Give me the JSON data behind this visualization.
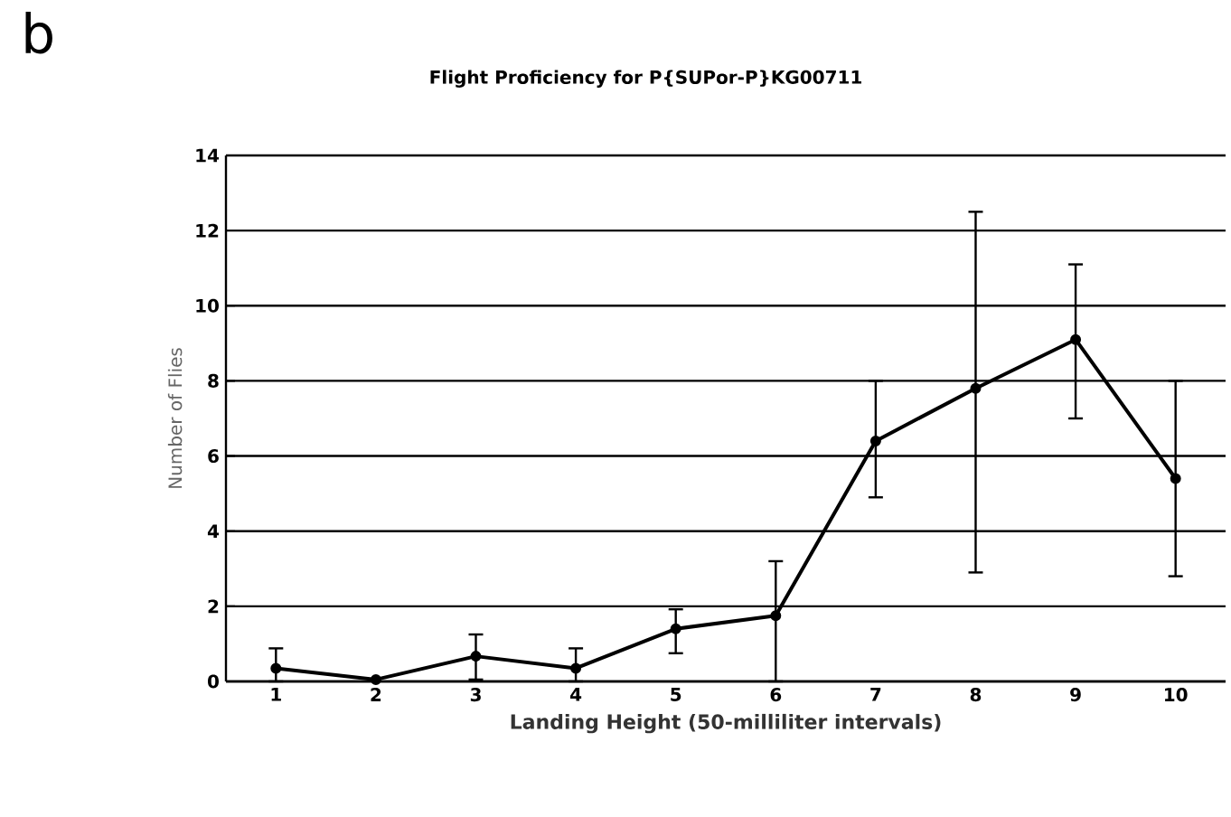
{
  "chart_data": {
    "type": "line",
    "title": "Flight Proficiency for P{SUPor-P}KG00711",
    "xlabel": "Landing Height (50-milliliter intervals)",
    "ylabel": "Number of Flies",
    "annotations": [
      "b"
    ],
    "categories": [
      "1",
      "2",
      "3",
      "4",
      "5",
      "6",
      "7",
      "8",
      "9",
      "10"
    ],
    "series": [
      {
        "color": "#000000",
        "values": [
          0.35,
          0.05,
          0.67,
          0.35,
          1.4,
          1.75,
          6.4,
          7.8,
          9.1,
          5.4
        ],
        "errors": [
          [
            0,
            0.88
          ],
          null,
          [
            0.05,
            1.25
          ],
          [
            0,
            0.88
          ],
          [
            0.75,
            1.92
          ],
          [
            0,
            3.2
          ],
          [
            4.9,
            8.0
          ],
          [
            2.9,
            12.5
          ],
          [
            7.0,
            11.1
          ],
          [
            2.8,
            8.0
          ]
        ]
      }
    ],
    "ylim": [
      0,
      14
    ],
    "yticks": [
      0,
      2,
      4,
      6,
      8,
      10,
      12,
      14
    ],
    "grid": "y",
    "marker": "circle",
    "line_style": "solid"
  }
}
